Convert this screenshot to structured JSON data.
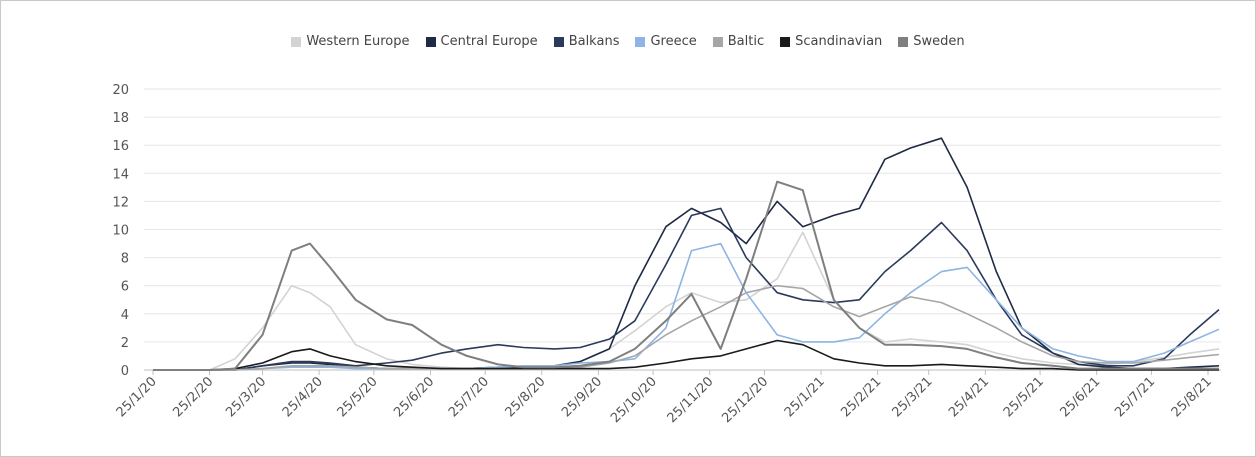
{
  "chart_data": {
    "type": "line",
    "title": "",
    "xlabel": "",
    "ylabel": "",
    "ylim": [
      0,
      20
    ],
    "yticks": [
      "0",
      "2",
      "4",
      "6",
      "8",
      "10",
      "12",
      "14",
      "16",
      "18",
      "20"
    ],
    "xtick_labels": [
      "25/1/20",
      "25/2/20",
      "25/3/20",
      "25/4/20",
      "25/5/20",
      "25/6/20",
      "25/7/20",
      "25/8/20",
      "25/9/20",
      "25/10/20",
      "25/11/20",
      "25/12/20",
      "25/1/21",
      "25/2/21",
      "25/3/21",
      "25/4/21",
      "25/5/21",
      "25/6/21",
      "25/7/21",
      "25/8/21"
    ],
    "grid": "horizontal",
    "legend_position": "top",
    "x": [
      "2020-01-25",
      "2020-02-10",
      "2020-02-25",
      "2020-03-10",
      "2020-03-25",
      "2020-04-10",
      "2020-04-20",
      "2020-05-01",
      "2020-05-15",
      "2020-06-01",
      "2020-06-15",
      "2020-07-01",
      "2020-07-15",
      "2020-08-01",
      "2020-08-15",
      "2020-09-01",
      "2020-09-15",
      "2020-10-01",
      "2020-10-15",
      "2020-11-01",
      "2020-11-15",
      "2020-12-01",
      "2020-12-15",
      "2021-01-01",
      "2021-01-15",
      "2021-02-01",
      "2021-02-15",
      "2021-03-01",
      "2021-03-15",
      "2021-04-01",
      "2021-04-15",
      "2021-05-01",
      "2021-05-15",
      "2021-06-01",
      "2021-06-15",
      "2021-07-01",
      "2021-07-15",
      "2021-08-01",
      "2021-08-15",
      "2021-08-31"
    ],
    "series": [
      {
        "name": "Western Europe",
        "color": "#d3d3d3",
        "values": [
          0,
          0,
          0,
          0.8,
          3,
          6,
          5.5,
          4.5,
          1.8,
          0.8,
          0.4,
          0.2,
          0.1,
          0.1,
          0.2,
          0.3,
          0.6,
          1.5,
          2.8,
          4.5,
          5.5,
          4.8,
          5,
          6.5,
          9.8,
          5,
          3,
          2,
          2.2,
          2,
          1.8,
          1.2,
          0.8,
          0.5,
          0.4,
          0.4,
          0.6,
          0.9,
          1.2,
          1.5
        ]
      },
      {
        "name": "Central Europe",
        "color": "#1f2a44",
        "values": [
          0,
          0,
          0,
          0,
          0.3,
          0.5,
          0.5,
          0.4,
          0.2,
          0.1,
          0.1,
          0.1,
          0.1,
          0.2,
          0.2,
          0.3,
          0.6,
          1.5,
          6,
          10.2,
          11.5,
          10.5,
          9,
          12,
          10.2,
          11,
          11.5,
          15,
          15.8,
          16.5,
          13,
          7,
          3,
          1.2,
          0.4,
          0.2,
          0.1,
          0.1,
          0.2,
          0.3
        ]
      },
      {
        "name": "Balkans",
        "color": "#2b3a5c",
        "values": [
          0,
          0,
          0,
          0,
          0.3,
          0.6,
          0.6,
          0.5,
          0.3,
          0.5,
          0.7,
          1.2,
          1.5,
          1.8,
          1.6,
          1.5,
          1.6,
          2.2,
          3.5,
          7.5,
          11,
          11.5,
          8,
          5.5,
          5,
          4.8,
          5,
          7,
          8.5,
          10.5,
          8.5,
          5,
          2.5,
          1.2,
          0.6,
          0.3,
          0.3,
          0.8,
          2.5,
          4.3
        ]
      },
      {
        "name": "Greece",
        "color": "#8db4e2",
        "values": [
          0,
          0,
          0,
          0,
          0.1,
          0.2,
          0.2,
          0.2,
          0.1,
          0.1,
          0.1,
          0.1,
          0.1,
          0.2,
          0.3,
          0.3,
          0.5,
          0.6,
          0.8,
          3,
          8.5,
          9,
          5.5,
          2.5,
          2,
          2,
          2.3,
          4,
          5.5,
          7,
          7.3,
          5,
          3,
          1.5,
          1,
          0.6,
          0.6,
          1.2,
          2,
          2.9
        ]
      },
      {
        "name": "Baltic",
        "color": "#a6a6a6",
        "values": [
          0,
          0,
          0,
          0,
          0.1,
          0.3,
          0.3,
          0.3,
          0.2,
          0.1,
          0.1,
          0.1,
          0.1,
          0.1,
          0.1,
          0.1,
          0.2,
          0.5,
          1,
          2.5,
          3.5,
          4.5,
          5.5,
          6,
          5.8,
          4.5,
          3.8,
          4.5,
          5.2,
          4.8,
          4,
          3,
          2,
          1,
          0.6,
          0.5,
          0.5,
          0.7,
          0.9,
          1.1
        ]
      },
      {
        "name": "Scandinavian",
        "color": "#1a1a1a",
        "values": [
          0,
          0,
          0,
          0.1,
          0.5,
          1.3,
          1.5,
          1,
          0.6,
          0.3,
          0.2,
          0.1,
          0.1,
          0.1,
          0.1,
          0.1,
          0.1,
          0.1,
          0.2,
          0.5,
          0.8,
          1,
          1.5,
          2.1,
          1.8,
          0.8,
          0.5,
          0.3,
          0.3,
          0.4,
          0.3,
          0.2,
          0.1,
          0.1,
          0,
          0,
          0,
          0,
          0,
          0
        ]
      },
      {
        "name": "Sweden",
        "color": "#7f7f7f",
        "values": [
          0,
          0,
          0,
          0.1,
          2.5,
          8.5,
          9,
          7.3,
          5,
          3.6,
          3.2,
          1.8,
          1,
          0.4,
          0.2,
          0.2,
          0.3,
          0.6,
          1.5,
          3.5,
          5.4,
          1.5,
          6.5,
          13.4,
          12.8,
          5,
          3,
          1.8,
          1.8,
          1.7,
          1.5,
          0.9,
          0.5,
          0.3,
          0.1,
          0.1,
          0.1,
          0.1,
          0.1,
          0.1
        ]
      }
    ]
  }
}
